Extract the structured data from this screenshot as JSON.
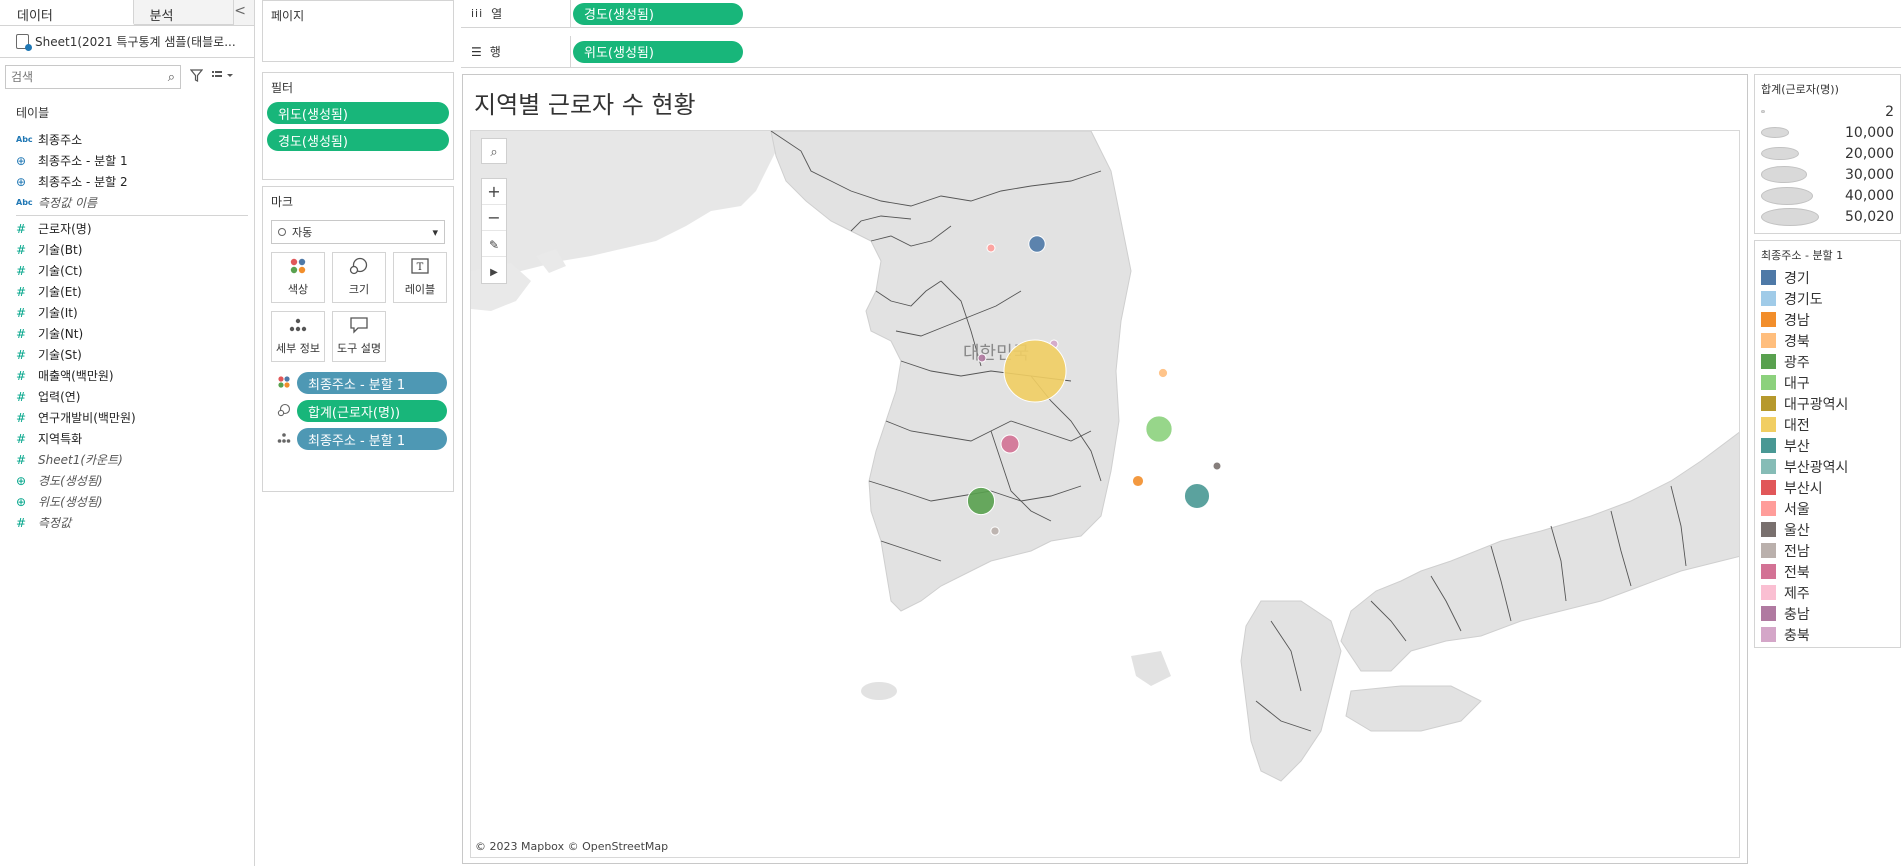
{
  "data_pane": {
    "tabs": [
      "데이터",
      "분석"
    ],
    "collapse_glyph": "<",
    "datasource": "Sheet1(2021 특구통계 샘플(태블로...",
    "search_placeholder": "검색",
    "tables_title": "테이블",
    "fields": [
      {
        "type": "abc",
        "name": "최종주소",
        "italic": false
      },
      {
        "type": "geo",
        "name": "최종주소 - 분할 1",
        "italic": false
      },
      {
        "type": "geo",
        "name": "최종주소 - 분할 2",
        "italic": false
      },
      {
        "type": "abc",
        "name": "측정값 이름",
        "italic": true
      },
      {
        "type": "num",
        "name": "근로자(명)",
        "italic": false
      },
      {
        "type": "num",
        "name": "기술(Bt)",
        "italic": false
      },
      {
        "type": "num",
        "name": "기술(Ct)",
        "italic": false
      },
      {
        "type": "num",
        "name": "기술(Et)",
        "italic": false
      },
      {
        "type": "num",
        "name": "기술(It)",
        "italic": false
      },
      {
        "type": "num",
        "name": "기술(Nt)",
        "italic": false
      },
      {
        "type": "num",
        "name": "기술(St)",
        "italic": false
      },
      {
        "type": "num",
        "name": "매출액(백만원)",
        "italic": false
      },
      {
        "type": "num",
        "name": "업력(연)",
        "italic": false
      },
      {
        "type": "num",
        "name": "연구개발비(백만원)",
        "italic": false
      },
      {
        "type": "num",
        "name": "지역특화",
        "italic": false
      },
      {
        "type": "num",
        "name": "Sheet1(카운트)",
        "italic": true
      },
      {
        "type": "geo-num",
        "name": "경도(생성됨)",
        "italic": true
      },
      {
        "type": "geo-num",
        "name": "위도(생성됨)",
        "italic": true
      },
      {
        "type": "num",
        "name": "측정값",
        "italic": true
      }
    ]
  },
  "shelves": {
    "pages_title": "페이지",
    "filters_title": "필터",
    "filters": [
      "위도(생성됨)",
      "경도(생성됨)"
    ],
    "marks_title": "마크",
    "marks_type": "자동",
    "mark_buttons": [
      "색상",
      "크기",
      "레이블",
      "세부 정보",
      "도구 설명"
    ],
    "encodings": [
      {
        "icon": "color-dots-icon",
        "label": "최종주소 - 분할 1",
        "color": "#4e98b4"
      },
      {
        "icon": "size-icon",
        "label": "합계(근로자(명))",
        "color": "#18b67a"
      },
      {
        "icon": "detail-icon",
        "label": "최종주소 - 분할 1",
        "color": "#4e98b4"
      }
    ],
    "columns_label": "열",
    "columns_pill": "경도(생성됨)",
    "rows_label": "행",
    "rows_pill": "위도(생성됨)"
  },
  "sheet": {
    "title": "지역별 근로자 수 현황",
    "map_label": "대한민국",
    "attribution": "© 2023 Mapbox © OpenStreetMap",
    "map_tools": [
      "search-icon",
      "zoom-in-icon",
      "zoom-out-icon",
      "pin-icon",
      "play-icon"
    ]
  },
  "size_legend": {
    "title": "합계(근로자(명))",
    "items": [
      "2",
      "10,000",
      "20,000",
      "30,000",
      "40,000",
      "50,020"
    ]
  },
  "color_legend": {
    "title": "최종주소 - 분할 1",
    "items": [
      {
        "label": "경기",
        "color": "#4e79a7"
      },
      {
        "label": "경기도",
        "color": "#a0cbe8"
      },
      {
        "label": "경남",
        "color": "#f28e2b"
      },
      {
        "label": "경북",
        "color": "#ffbe7d"
      },
      {
        "label": "광주",
        "color": "#59a14f"
      },
      {
        "label": "대구",
        "color": "#8cd17d"
      },
      {
        "label": "대구광역시",
        "color": "#b6992d"
      },
      {
        "label": "대전",
        "color": "#f1ce63"
      },
      {
        "label": "부산",
        "color": "#499894"
      },
      {
        "label": "부산광역시",
        "color": "#86bcb6"
      },
      {
        "label": "부산시",
        "color": "#e15759"
      },
      {
        "label": "서울",
        "color": "#ff9d9a"
      },
      {
        "label": "울산",
        "color": "#79706e"
      },
      {
        "label": "전남",
        "color": "#bab0ac"
      },
      {
        "label": "전북",
        "color": "#d37295"
      },
      {
        "label": "제주",
        "color": "#fabfd2"
      },
      {
        "label": "충남",
        "color": "#b07aa1"
      },
      {
        "label": "충북",
        "color": "#d4a6c8"
      }
    ]
  },
  "map_points": [
    {
      "region": "경기",
      "workers": 3500
    },
    {
      "region": "서울",
      "workers": 120
    },
    {
      "region": "충남",
      "workers": 150
    },
    {
      "region": "충북",
      "workers": 160
    },
    {
      "region": "대전",
      "workers": 50020
    },
    {
      "region": "경북",
      "workers": 1100
    },
    {
      "region": "전북",
      "workers": 4200
    },
    {
      "region": "대구",
      "workers": 9000
    },
    {
      "region": "울산",
      "workers": 700
    },
    {
      "region": "경남",
      "workers": 1600
    },
    {
      "region": "광주",
      "workers": 9600
    },
    {
      "region": "부산",
      "workers": 8200
    },
    {
      "region": "전남",
      "workers": 900
    }
  ]
}
